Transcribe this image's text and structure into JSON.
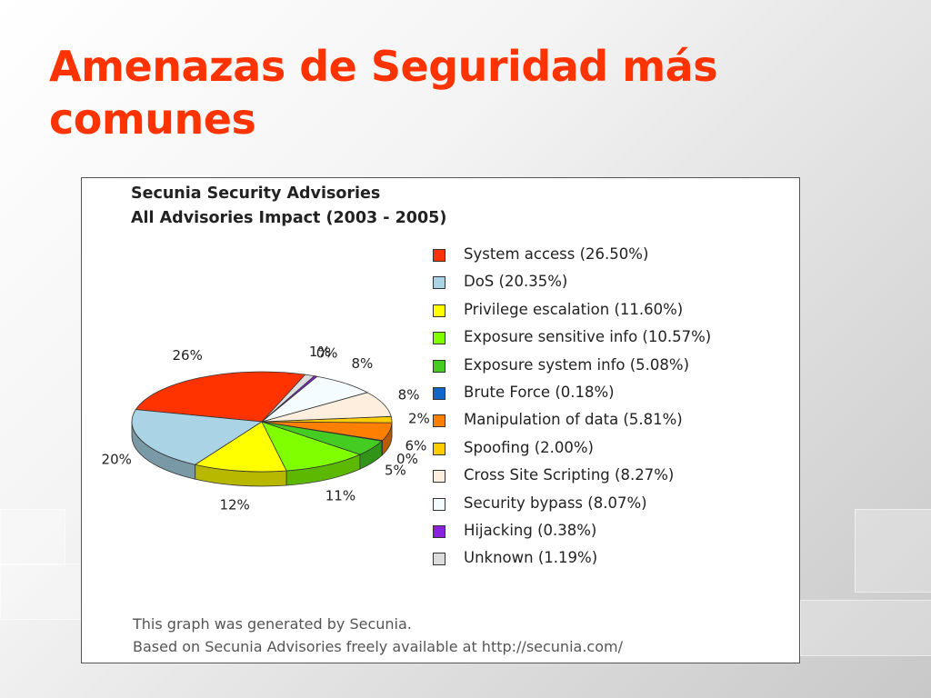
{
  "slide": {
    "title": "Amenazas de Seguridad más comunes"
  },
  "chart_data": {
    "type": "pie",
    "title_lines": [
      "Secunia Security Advisories",
      "All Advisories Impact (2003 - 2005)"
    ],
    "series": [
      {
        "name": "System access (26.50%)",
        "value": 26.5,
        "label": "26%",
        "color": "#ff3300"
      },
      {
        "name": "DoS (20.35%)",
        "value": 20.35,
        "label": "20%",
        "color": "#aad4e6"
      },
      {
        "name": "Privilege escalation (11.60%)",
        "value": 11.6,
        "label": "12%",
        "color": "#ffff00"
      },
      {
        "name": "Exposure sensitive info (10.57%)",
        "value": 10.57,
        "label": "11%",
        "color": "#80ff00"
      },
      {
        "name": "Exposure system info (5.08%)",
        "value": 5.08,
        "label": "5%",
        "color": "#44cc22"
      },
      {
        "name": "Brute Force (0.18%)",
        "value": 0.18,
        "label": "0%",
        "color": "#1166cc"
      },
      {
        "name": "Manipulation of data (5.81%)",
        "value": 5.81,
        "label": "6%",
        "color": "#ff8000"
      },
      {
        "name": "Spoofing (2.00%)",
        "value": 2.0,
        "label": "2%",
        "color": "#ffcc00"
      },
      {
        "name": "Cross Site Scripting (8.27%)",
        "value": 8.27,
        "label": "8%",
        "color": "#fdeedd"
      },
      {
        "name": "Security bypass (8.07%)",
        "value": 8.07,
        "label": "8%",
        "color": "#f4fcff"
      },
      {
        "name": "Hijacking (0.38%)",
        "value": 0.38,
        "label": "0%",
        "color": "#8822dd"
      },
      {
        "name": "Unknown (1.19%)",
        "value": 1.19,
        "label": "1%",
        "color": "#dcdcdc"
      }
    ],
    "footer": [
      "This graph was generated by Secunia.",
      "Based on Secunia Advisories freely available at http://secunia.com/"
    ]
  }
}
